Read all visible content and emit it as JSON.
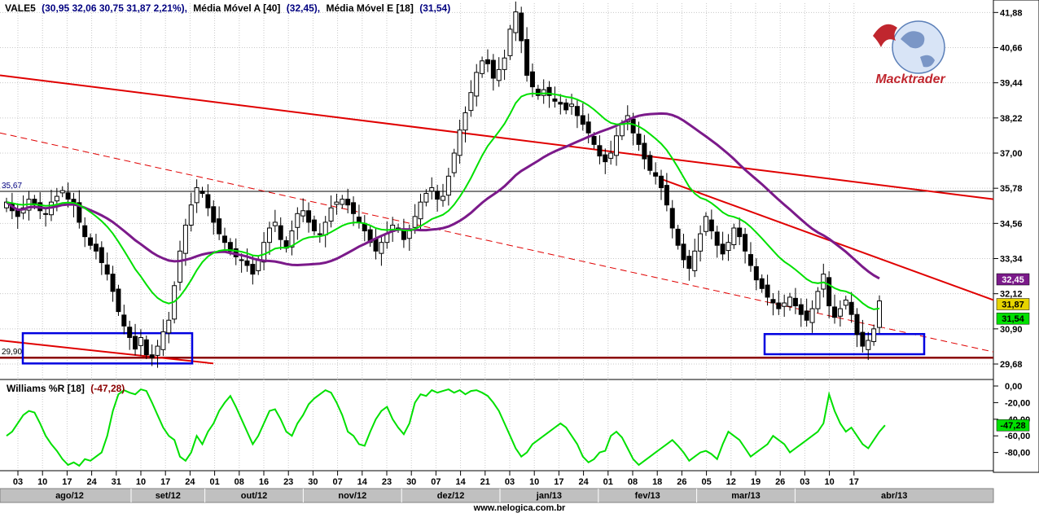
{
  "header": {
    "symbol": "VALE5",
    "ohlc_text": "(30,95  32,06  30,75  31,87  2,21%),",
    "sma_label": "Média Móvel A [40]",
    "sma_value": "(32,45),",
    "ema_label": "Média Móvel E [18]",
    "ema_value": "(31,54)"
  },
  "logo": {
    "text": "Macktrader"
  },
  "indicator": {
    "label": "Williams %R [18]",
    "value_text": "(-47,28)",
    "badge": "-47,28"
  },
  "price_axis": {
    "ticks": [
      "41,88",
      "40,66",
      "39,44",
      "38,22",
      "37,00",
      "35,78",
      "34,56",
      "33,34",
      "32,12",
      "30,90",
      "29,68"
    ],
    "left_markers": [
      "35,67",
      "29,90"
    ],
    "badges": {
      "sma": "32,45",
      "close": "31,87",
      "ema": "31,54"
    }
  },
  "wr_axis": {
    "ticks": [
      "0,00",
      "-20,00",
      "-40,00",
      "-60,00",
      "-80,00"
    ]
  },
  "date_axis": {
    "days": [
      "03",
      "10",
      "17",
      "24",
      "31",
      "10",
      "17",
      "24",
      "01",
      "08",
      "16",
      "23",
      "30",
      "07",
      "14",
      "23",
      "30",
      "07",
      "14",
      "21",
      "03",
      "10",
      "17",
      "24",
      "01",
      "08",
      "18",
      "26",
      "05",
      "12",
      "19",
      "26",
      "03",
      "10",
      "17"
    ],
    "months": [
      "ago/12",
      "set/12",
      "out/12",
      "nov/12",
      "dez/12",
      "jan/13",
      "fev/13",
      "mar/13",
      "abr/13"
    ]
  },
  "footer": {
    "url": "www.nelogica.com.br"
  },
  "colors": {
    "up": "#ffffff",
    "down": "#000000",
    "ema": "#00e000",
    "sma": "#7b1a8a",
    "trend": "#e00000",
    "support": "#8b0000",
    "box": "#0000e0",
    "wr": "#00e000"
  },
  "chart_data": {
    "type": "candlestick",
    "title": "VALE5",
    "y_range": [
      29.2,
      42.2
    ],
    "x_labels_days": [
      "03",
      "10",
      "17",
      "24",
      "31",
      "10",
      "17",
      "24",
      "01",
      "08",
      "16",
      "23",
      "30",
      "07",
      "14",
      "23",
      "30",
      "07",
      "14",
      "21",
      "03",
      "10",
      "17",
      "24",
      "01",
      "08",
      "18",
      "26",
      "05",
      "12",
      "19",
      "26",
      "03",
      "10",
      "17"
    ],
    "months": [
      "ago/12",
      "set/12",
      "out/12",
      "nov/12",
      "dez/12",
      "jan/13",
      "fev/13",
      "mar/13",
      "abr/13"
    ],
    "last_candle": {
      "open": 30.95,
      "high": 32.06,
      "low": 30.75,
      "close": 31.87,
      "change_pct": 2.21
    },
    "close_series": [
      35.3,
      35.0,
      34.8,
      35.1,
      35.4,
      35.2,
      35.0,
      34.9,
      35.3,
      35.5,
      35.7,
      35.4,
      35.2,
      34.6,
      34.1,
      33.8,
      33.6,
      33.2,
      32.8,
      32.2,
      31.5,
      31.0,
      30.6,
      30.2,
      30.6,
      30.0,
      29.9,
      30.3,
      30.8,
      31.2,
      32.4,
      33.6,
      34.5,
      35.2,
      35.8,
      35.6,
      35.1,
      34.6,
      34.2,
      33.9,
      33.6,
      33.4,
      33.3,
      33.1,
      32.8,
      33.3,
      33.9,
      34.4,
      34.6,
      34.0,
      33.7,
      34.3,
      34.9,
      35.0,
      34.6,
      34.3,
      34.2,
      34.6,
      35.1,
      35.3,
      35.4,
      35.2,
      34.9,
      34.6,
      34.3,
      33.9,
      33.6,
      33.9,
      34.2,
      34.5,
      34.4,
      34.0,
      34.3,
      34.8,
      35.3,
      35.6,
      35.8,
      35.4,
      35.5,
      36.2,
      37.0,
      37.8,
      38.4,
      39.1,
      39.8,
      40.2,
      40.1,
      39.6,
      39.9,
      40.3,
      41.3,
      41.9,
      40.9,
      39.7,
      39.3,
      39.0,
      39.2,
      39.0,
      38.8,
      38.7,
      38.5,
      38.7,
      38.3,
      38.0,
      37.7,
      37.3,
      36.9,
      36.7,
      37.0,
      37.6,
      38.0,
      38.3,
      37.7,
      37.3,
      36.8,
      36.4,
      36.2,
      35.8,
      35.2,
      34.4,
      33.8,
      33.3,
      33.0,
      33.6,
      34.2,
      34.8,
      34.3,
      33.8,
      33.5,
      33.9,
      34.4,
      34.1,
      33.6,
      33.1,
      32.6,
      32.3,
      32.0,
      31.8,
      31.6,
      31.8,
      32.0,
      31.7,
      31.4,
      31.2,
      31.6,
      32.2,
      32.8,
      31.7,
      31.3,
      31.6,
      31.9,
      31.4,
      30.7,
      30.3,
      30.5,
      30.9,
      31.87
    ],
    "ema18_last": 31.54,
    "sma40_last": 32.45,
    "horizontal_lines": [
      35.67,
      29.9
    ],
    "williams_r": {
      "name": "Williams %R [18]",
      "range": [
        -100,
        0
      ],
      "last": -47.28,
      "values": [
        -60,
        -55,
        -45,
        -35,
        -30,
        -32,
        -45,
        -60,
        -70,
        -78,
        -88,
        -95,
        -92,
        -96,
        -88,
        -90,
        -85,
        -80,
        -60,
        -30,
        -10,
        -5,
        -8,
        -10,
        -4,
        -6,
        -20,
        -35,
        -50,
        -60,
        -65,
        -85,
        -90,
        -80,
        -60,
        -70,
        -55,
        -45,
        -30,
        -20,
        -12,
        -25,
        -40,
        -55,
        -70,
        -60,
        -45,
        -30,
        -28,
        -40,
        -55,
        -60,
        -45,
        -35,
        -22,
        -15,
        -10,
        -5,
        -8,
        -20,
        -35,
        -55,
        -60,
        -70,
        -72,
        -55,
        -40,
        -30,
        -25,
        -40,
        -50,
        -58,
        -45,
        -20,
        -10,
        -12,
        -5,
        -8,
        -6,
        -4,
        -8,
        -5,
        -10,
        -6,
        -5,
        -8,
        -12,
        -20,
        -30,
        -45,
        -60,
        -75,
        -85,
        -80,
        -70,
        -65,
        -60,
        -55,
        -50,
        -45,
        -50,
        -60,
        -70,
        -85,
        -92,
        -88,
        -80,
        -78,
        -60,
        -55,
        -62,
        -75,
        -88,
        -95,
        -90,
        -85,
        -80,
        -75,
        -70,
        -65,
        -72,
        -80,
        -90,
        -85,
        -80,
        -78,
        -82,
        -88,
        -70,
        -55,
        -60,
        -65,
        -75,
        -85,
        -80,
        -75,
        -70,
        -60,
        -65,
        -70,
        -80,
        -75,
        -70,
        -65,
        -60,
        -55,
        -45,
        -10,
        -30,
        -45,
        -55,
        -50,
        -60,
        -70,
        -75,
        -65,
        -55,
        -47.28
      ]
    }
  }
}
